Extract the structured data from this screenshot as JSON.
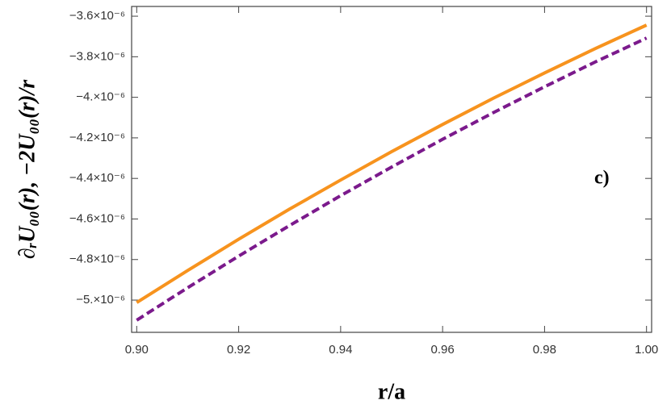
{
  "chart_data": {
    "type": "line",
    "x_label": "r/a",
    "y_label": "∂ᵣU₀₀(r), −2U₀₀(r)/r",
    "annotation": "c)",
    "x": [
      0.9,
      0.91,
      0.92,
      0.93,
      0.94,
      0.95,
      0.96,
      0.97,
      0.98,
      0.99,
      1.0
    ],
    "series": [
      {
        "color": "#f7931e",
        "dash": false,
        "values": [
          -5.012e-06,
          -4.854e-06,
          -4.7e-06,
          -4.551e-06,
          -4.408e-06,
          -4.268e-06,
          -4.134e-06,
          -4.004e-06,
          -3.88e-06,
          -3.759e-06,
          -3.644e-06
        ]
      },
      {
        "color": "#7b1a8c",
        "dash": true,
        "values": [
          -5.099e-06,
          -4.939e-06,
          -4.783e-06,
          -4.632e-06,
          -4.485e-06,
          -4.344e-06,
          -4.207e-06,
          -4.075e-06,
          -3.948e-06,
          -3.825e-06,
          -3.708e-06
        ]
      }
    ],
    "xlim": [
      0.899,
      1.001
    ],
    "ylim": [
      -5.159e-06,
      -3.552e-06
    ],
    "xticks": [
      {
        "value": 0.9,
        "label": "0.90"
      },
      0.92,
      0.94,
      0.96,
      0.98,
      {
        "value": 1.0,
        "label": "1.00"
      }
    ],
    "yticks": [
      {
        "value": -5e-06,
        "label": "−5.×10⁻⁶"
      },
      {
        "value": -4.8e-06,
        "label": "−4.8×10⁻⁶"
      },
      {
        "value": -4.6e-06,
        "label": "−4.6×10⁻⁶"
      },
      {
        "value": -4.4e-06,
        "label": "−4.4×10⁻⁶"
      },
      {
        "value": -4.2e-06,
        "label": "−4.2×10⁻⁶"
      },
      {
        "value": -4e-06,
        "label": "−4.×10⁻⁶"
      },
      {
        "value": -3.8e-06,
        "label": "−3.8×10⁻⁶"
      },
      {
        "value": -3.6e-06,
        "label": "−3.6×10⁻⁶"
      }
    ]
  }
}
